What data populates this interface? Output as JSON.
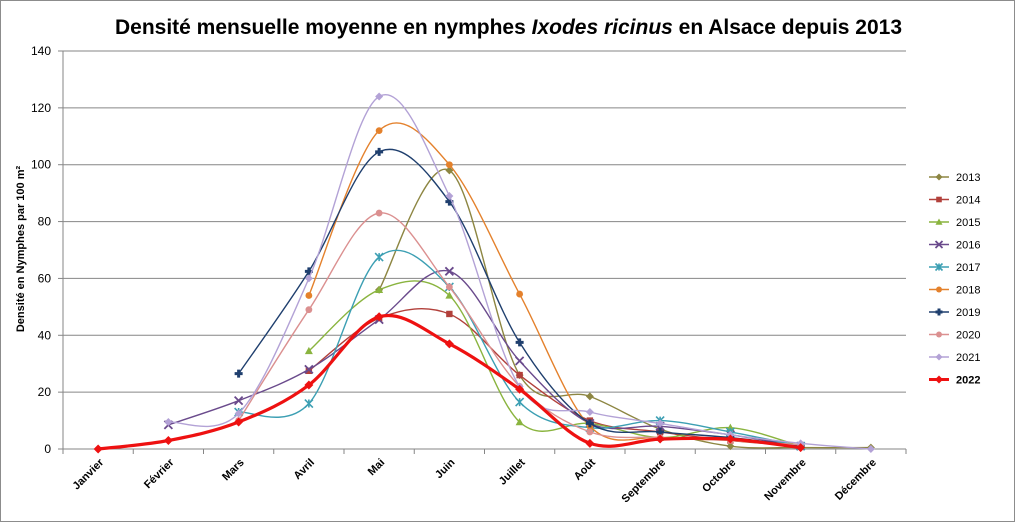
{
  "chart_data": {
    "type": "line",
    "title_pre": "Densité mensuelle moyenne en nymphes ",
    "title_italic": "Ixodes ricinus",
    "title_post": " en Alsace depuis 2013",
    "ylabel": "Densité en Nymphes par 100 m²",
    "xlabel": "",
    "ylim": [
      0,
      140
    ],
    "yticks": [
      0,
      20,
      40,
      60,
      80,
      100,
      120,
      140
    ],
    "categories": [
      "Janvier",
      "Février",
      "Mars",
      "Avril",
      "Mai",
      "Juin",
      "Juillet",
      "Août",
      "Septembre",
      "Octobre",
      "Novembre",
      "Décembre"
    ],
    "grid": "horizontal",
    "legend_position": "right",
    "series": [
      {
        "name": "2013",
        "color": "#8d8642",
        "marker": "diamond",
        "width": 1.4,
        "bold": false,
        "values": [
          null,
          null,
          null,
          null,
          56,
          98,
          26,
          18.5,
          7,
          1,
          0.5,
          0.5
        ]
      },
      {
        "name": "2014",
        "color": "#b2403b",
        "marker": "square",
        "width": 1.4,
        "bold": false,
        "values": [
          null,
          null,
          null,
          27.5,
          46,
          47.5,
          26,
          10,
          6,
          3,
          1,
          null
        ]
      },
      {
        "name": "2015",
        "color": "#8ab43f",
        "marker": "triangle",
        "width": 1.4,
        "bold": false,
        "values": [
          null,
          null,
          null,
          34.5,
          56,
          54,
          9.5,
          9,
          4,
          7.5,
          1,
          null
        ]
      },
      {
        "name": "2016",
        "color": "#6a4a8c",
        "marker": "x",
        "width": 1.4,
        "bold": false,
        "values": [
          null,
          8.5,
          17,
          28,
          45.5,
          62.5,
          31,
          9,
          8,
          5,
          1,
          null
        ]
      },
      {
        "name": "2017",
        "color": "#3c9fb3",
        "marker": "star",
        "width": 1.4,
        "bold": false,
        "values": [
          null,
          null,
          13,
          16,
          67.5,
          57,
          16.5,
          7.5,
          10,
          6,
          1,
          null
        ]
      },
      {
        "name": "2018",
        "color": "#e4812c",
        "marker": "circle",
        "width": 1.4,
        "bold": false,
        "values": [
          null,
          null,
          null,
          54,
          112,
          100,
          54.5,
          8,
          4,
          3,
          1,
          null
        ]
      },
      {
        "name": "2019",
        "color": "#1f3f6e",
        "marker": "plus",
        "width": 1.4,
        "bold": false,
        "values": [
          null,
          null,
          26.5,
          62.5,
          104.5,
          87,
          37.5,
          9,
          6,
          4,
          1,
          null
        ]
      },
      {
        "name": "2020",
        "color": "#db9090",
        "marker": "circle",
        "width": 1.4,
        "bold": false,
        "values": [
          null,
          null,
          10,
          49,
          83,
          57,
          22,
          6,
          4,
          3,
          1.5,
          null
        ]
      },
      {
        "name": "2021",
        "color": "#b3a2d6",
        "marker": "diamond",
        "width": 1.4,
        "bold": false,
        "values": [
          null,
          9.5,
          12.5,
          60,
          124,
          89,
          22,
          13,
          9,
          5,
          2,
          0
        ]
      },
      {
        "name": "2022",
        "color": "#ee1111",
        "marker": "diamond",
        "width": 3.2,
        "bold": true,
        "values": [
          0,
          3,
          9.5,
          22.5,
          46.5,
          37,
          21,
          2,
          3.5,
          3.5,
          0.5,
          null
        ]
      }
    ]
  }
}
